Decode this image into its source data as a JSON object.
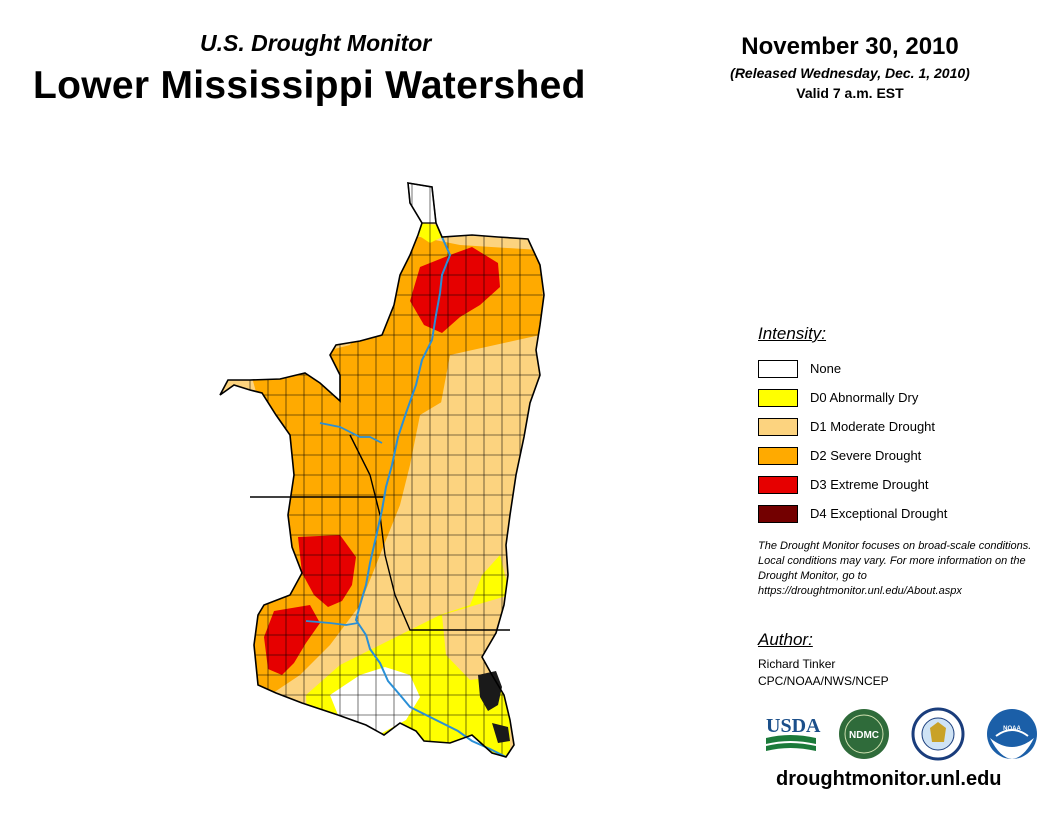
{
  "header": {
    "subtitle": "U.S. Drought Monitor",
    "title": "Lower Mississippi Watershed",
    "date": "November 30, 2010",
    "released": "(Released Wednesday, Dec. 1, 2010)",
    "valid": "Valid 7 a.m. EST"
  },
  "legend": {
    "title": "Intensity:",
    "items": [
      {
        "label": "None",
        "color": "#ffffff"
      },
      {
        "label": "D0 Abnormally Dry",
        "color": "#ffff00"
      },
      {
        "label": "D1 Moderate Drought",
        "color": "#fcd37f"
      },
      {
        "label": "D2 Severe Drought",
        "color": "#ffaa00"
      },
      {
        "label": "D3 Extreme Drought",
        "color": "#e60000"
      },
      {
        "label": "D4 Exceptional Drought",
        "color": "#730000"
      }
    ]
  },
  "note": "The Drought Monitor focuses on broad-scale conditions. Local conditions may vary. For more information on the Drought Monitor, go to https://droughtmonitor.unl.edu/About.aspx",
  "author": {
    "title": "Author:",
    "name": "Richard Tinker",
    "org": "CPC/NOAA/NWS/NCEP"
  },
  "logos": {
    "usda": "USDA",
    "ndmc": "NDMC",
    "noaa": "NOAA"
  },
  "site_url": "droughtmonitor.unl.edu",
  "colors": {
    "river": "#2a8fd6",
    "border": "#000000"
  }
}
